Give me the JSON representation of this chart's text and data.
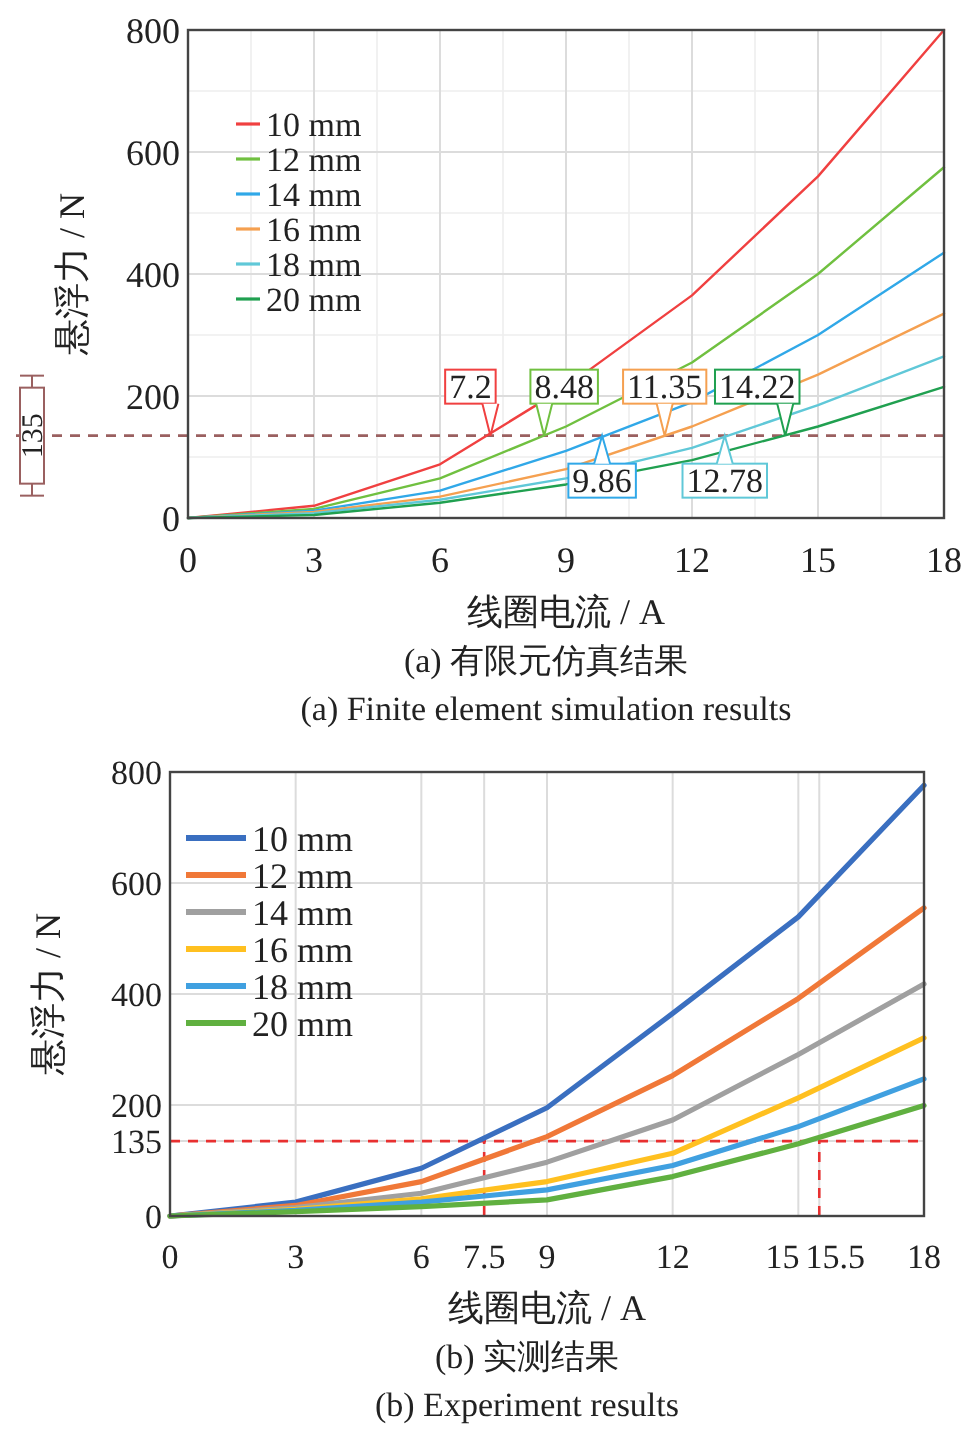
{
  "chart_data": [
    {
      "type": "line",
      "title": "(a) 有限元仿真结果",
      "subtitle": "(a) Finite element simulation results",
      "xlabel": "线圈电流 / A",
      "ylabel": "悬浮力 / N",
      "x": [
        0,
        3,
        6,
        9,
        12,
        15,
        18
      ],
      "xlim": [
        0,
        18
      ],
      "ylim": [
        0,
        800
      ],
      "xticks": [
        0,
        3,
        6,
        9,
        12,
        15,
        18
      ],
      "yticks": [
        0,
        200,
        400,
        600,
        800
      ],
      "grid": true,
      "legend": "top left",
      "marker": "none",
      "line_style": "solid",
      "series": [
        {
          "name": "10 mm",
          "color": "#f04040",
          "values": [
            0,
            20,
            88,
            215,
            365,
            560,
            800
          ]
        },
        {
          "name": "12 mm",
          "color": "#70c040",
          "values": [
            0,
            15,
            65,
            150,
            255,
            400,
            575
          ]
        },
        {
          "name": "14 mm",
          "color": "#30a8e8",
          "values": [
            0,
            12,
            45,
            110,
            190,
            300,
            435
          ]
        },
        {
          "name": "16 mm",
          "color": "#f5a050",
          "values": [
            0,
            10,
            35,
            80,
            150,
            235,
            335
          ]
        },
        {
          "name": "18 mm",
          "color": "#60c8d8",
          "values": [
            0,
            8,
            30,
            65,
            115,
            185,
            265
          ]
        },
        {
          "name": "20 mm",
          "color": "#20a050",
          "values": [
            0,
            5,
            25,
            55,
            95,
            150,
            215
          ]
        }
      ],
      "ref_lines": [
        {
          "axis": "y",
          "value": 135,
          "label": "135",
          "color": "#9a6060",
          "line_style": "dashed"
        }
      ],
      "annotations": [
        {
          "text": "7.2",
          "x": 7.2,
          "y": 135
        },
        {
          "text": "8.48",
          "x": 8.48,
          "y": 135
        },
        {
          "text": "9.86",
          "x": 9.86,
          "y": 135
        },
        {
          "text": "11.35",
          "x": 11.35,
          "y": 135
        },
        {
          "text": "12.78",
          "x": 12.78,
          "y": 135
        },
        {
          "text": "14.22",
          "x": 14.22,
          "y": 135
        }
      ]
    },
    {
      "type": "line",
      "title": "(b) 实测结果",
      "subtitle": "(b) Experiment results",
      "xlabel": "线圈电流 / A",
      "ylabel": "悬浮力 / N",
      "x": [
        0,
        3,
        6,
        9,
        12,
        15,
        18
      ],
      "xlim": [
        0,
        18
      ],
      "ylim": [
        0,
        800
      ],
      "xticks": [
        0,
        3,
        6,
        7.5,
        9,
        12,
        15,
        15.5,
        18
      ],
      "yticks": [
        0,
        135,
        200,
        400,
        600,
        800
      ],
      "grid": true,
      "legend": "top left",
      "marker": "none",
      "line_style": "solid",
      "series": [
        {
          "name": "10 mm",
          "color": "#3a6fc0",
          "values": [
            0,
            25,
            86,
            195,
            365,
            539,
            776
          ]
        },
        {
          "name": "12 mm",
          "color": "#f07838",
          "values": [
            0,
            19,
            62,
            143,
            253,
            392,
            555
          ]
        },
        {
          "name": "14 mm",
          "color": "#a0a0a0",
          "values": [
            0,
            15,
            41,
            97,
            173,
            291,
            418
          ]
        },
        {
          "name": "16 mm",
          "color": "#ffc020",
          "values": [
            0,
            12,
            31,
            62,
            113,
            213,
            321
          ]
        },
        {
          "name": "18 mm",
          "color": "#40a0e0",
          "values": [
            0,
            10,
            25,
            47,
            91,
            161,
            247
          ]
        },
        {
          "name": "20 mm",
          "color": "#60b040",
          "values": [
            0,
            8,
            17,
            29,
            71,
            130,
            199
          ]
        }
      ],
      "ref_lines": [
        {
          "axis": "y",
          "value": 135,
          "color": "#e83030",
          "line_style": "dashed"
        },
        {
          "axis": "x",
          "value": 7.5,
          "color": "#e83030",
          "line_style": "dashed"
        },
        {
          "axis": "x",
          "value": 15.5,
          "color": "#e83030",
          "line_style": "dashed"
        }
      ]
    }
  ]
}
